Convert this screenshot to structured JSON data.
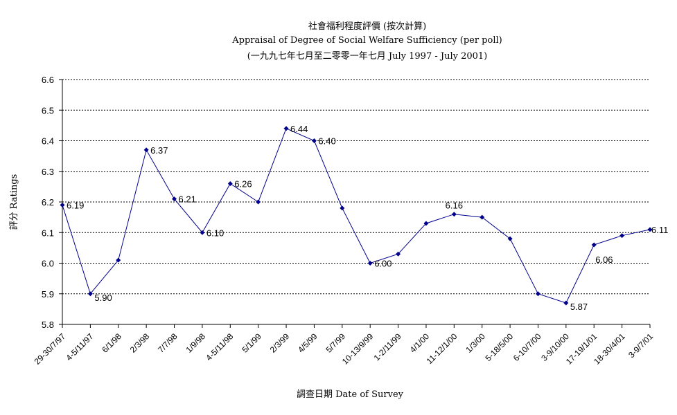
{
  "chart_data": {
    "type": "line",
    "title": "社會福利程度評價 (按次計算)",
    "subtitle": "Appraisal of Degree of Social Welfare Sufficiency (per poll)",
    "period": "(一九九七年七月至二零零一年七月 July 1997 - July 2001)",
    "xlabel": "調查日期 Date of Survey",
    "ylabel": "評分 Ratings",
    "ylim": [
      5.8,
      6.6
    ],
    "yticks": [
      "5.8",
      "5.9",
      "6.0",
      "6.1",
      "6.2",
      "6.3",
      "6.4",
      "6.5",
      "6.6"
    ],
    "grid": true,
    "line_color": "#00008b",
    "categories": [
      "29-30/7/97",
      "4-5/11/97",
      "6/1/98",
      "2/3/98",
      "7/7/98",
      "1/9/98",
      "4-5/11/98",
      "5/1/99",
      "2/3/99",
      "4/5/99",
      "5/7/99",
      "10-13/9/99",
      "1-2/11/99",
      "4/1/00",
      "11-12/1/00",
      "1/3/00",
      "5-18/5/00",
      "6-10/7/00",
      "3-9/10/00",
      "17-19/1/01",
      "18-30/4/01",
      "3-9/7/01"
    ],
    "values": [
      6.19,
      5.9,
      6.01,
      6.37,
      6.21,
      6.1,
      6.26,
      6.2,
      6.44,
      6.4,
      6.18,
      6.0,
      6.03,
      6.13,
      6.16,
      6.15,
      6.08,
      5.9,
      5.87,
      6.06,
      6.09,
      6.11
    ],
    "data_labels": [
      {
        "index": 0,
        "text": "6.19"
      },
      {
        "index": 1,
        "text": "5.90"
      },
      {
        "index": 3,
        "text": "6.37"
      },
      {
        "index": 4,
        "text": "6.21"
      },
      {
        "index": 5,
        "text": "6.10"
      },
      {
        "index": 6,
        "text": "6.26"
      },
      {
        "index": 8,
        "text": "6.44"
      },
      {
        "index": 9,
        "text": "6.40"
      },
      {
        "index": 11,
        "text": "6.00"
      },
      {
        "index": 14,
        "text": "6.16"
      },
      {
        "index": 18,
        "text": "5.87"
      },
      {
        "index": 19,
        "text": "6.06"
      },
      {
        "index": 21,
        "text": "6.11"
      }
    ]
  }
}
